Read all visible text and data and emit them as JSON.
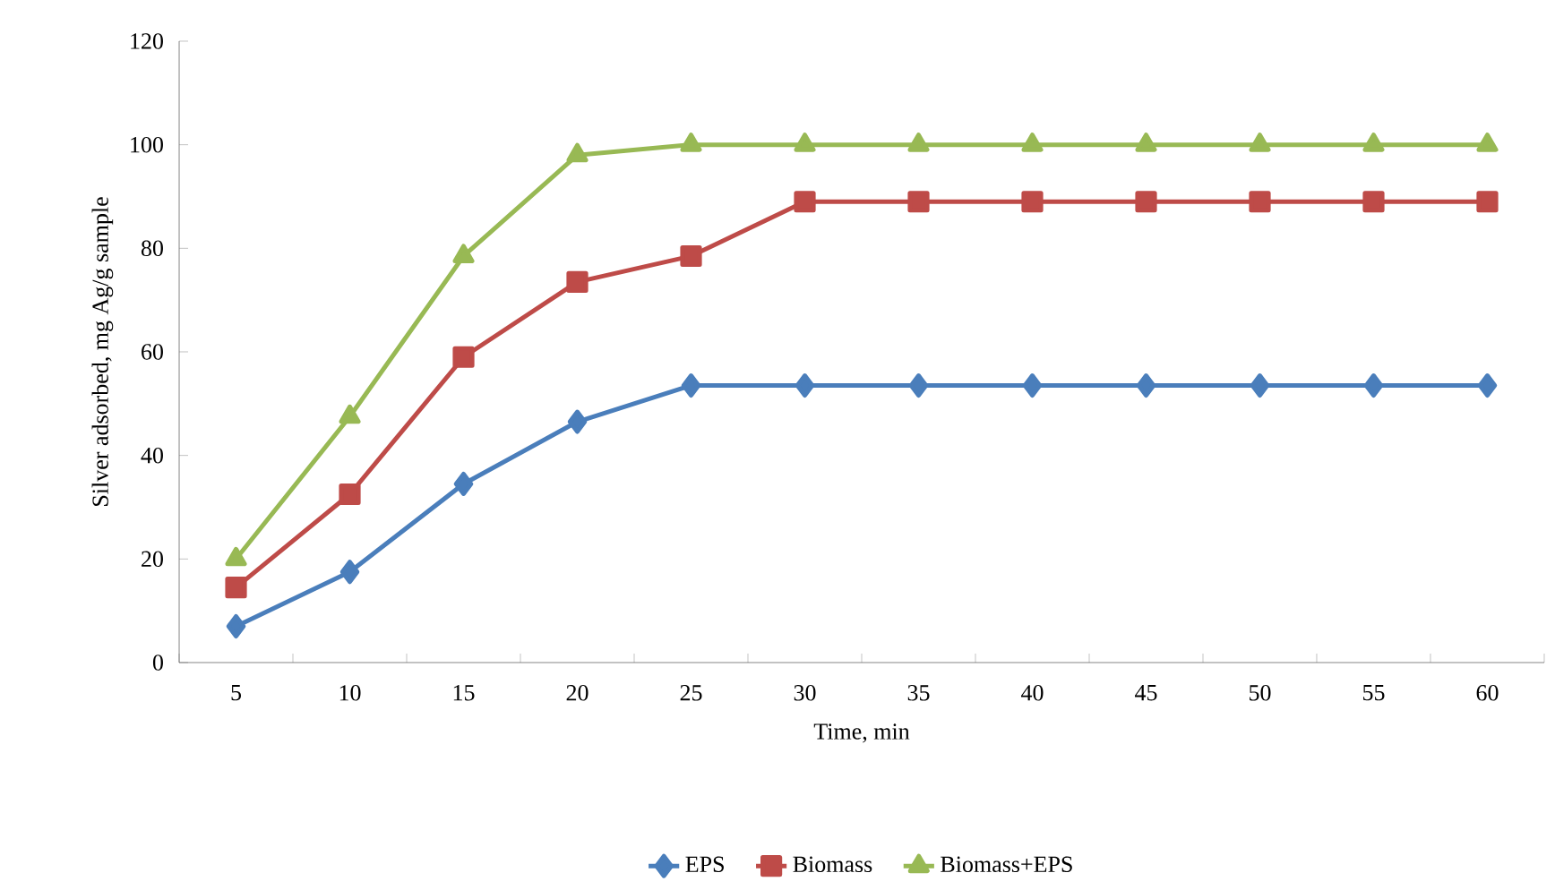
{
  "chart_data": {
    "type": "line",
    "xlabel": "Time, min",
    "ylabel": "Silver adsorbed, mg Ag/g sample",
    "categories": [
      "5",
      "10",
      "15",
      "20",
      "25",
      "30",
      "35",
      "40",
      "45",
      "50",
      "55",
      "60"
    ],
    "ylim": [
      0,
      120
    ],
    "yticks": [
      0,
      20,
      40,
      60,
      80,
      100,
      120
    ],
    "legend": "bottom",
    "series": [
      {
        "name": "EPS",
        "color": "#4a7ebb",
        "marker": "diamond",
        "values": [
          7,
          17.5,
          34.5,
          46.5,
          53.5,
          53.5,
          53.5,
          53.5,
          53.5,
          53.5,
          53.5,
          53.5
        ]
      },
      {
        "name": "Biomass",
        "color": "#be4b48",
        "marker": "square",
        "values": [
          14.5,
          32.5,
          59,
          73.5,
          78.5,
          89,
          89,
          89,
          89,
          89,
          89,
          89
        ]
      },
      {
        "name": "Biomass+EPS",
        "color": "#98b954",
        "marker": "triangle",
        "values": [
          20,
          47.5,
          78.5,
          98,
          100,
          100,
          100,
          100,
          100,
          100,
          100,
          100
        ]
      }
    ]
  }
}
